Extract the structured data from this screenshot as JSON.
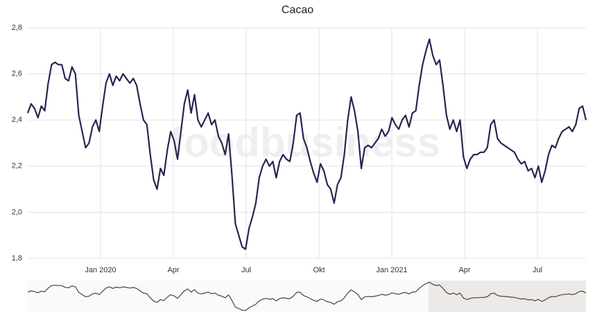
{
  "chart_data": {
    "type": "line",
    "title": "Cacao",
    "watermark": "foodbusiness",
    "xlim": [
      "2019-10",
      "2021-09"
    ],
    "xticks": [
      {
        "value": "2020-01",
        "label": "Jan 2020"
      },
      {
        "value": "2020-04",
        "label": "Apr"
      },
      {
        "value": "2020-07",
        "label": "Jul"
      },
      {
        "value": "2020-10",
        "label": "Okt"
      },
      {
        "value": "2021-01",
        "label": "Jan 2021"
      },
      {
        "value": "2021-04",
        "label": "Apr"
      },
      {
        "value": "2021-07",
        "label": "Jul"
      }
    ],
    "ylim": [
      1.8,
      2.8
    ],
    "yticks": [
      {
        "value": 1.8,
        "label": "1,8"
      },
      {
        "value": 2.0,
        "label": "2,0"
      },
      {
        "value": 2.2,
        "label": "2,2"
      },
      {
        "value": 2.4,
        "label": "2,4"
      },
      {
        "value": 2.6,
        "label": "2,6"
      },
      {
        "value": 2.8,
        "label": "2,8"
      }
    ],
    "grid": true,
    "series": [
      {
        "name": "Cacao",
        "color": "#2e2150",
        "values": [
          2.43,
          2.47,
          2.45,
          2.41,
          2.46,
          2.44,
          2.56,
          2.64,
          2.65,
          2.64,
          2.64,
          2.58,
          2.57,
          2.63,
          2.6,
          2.42,
          2.35,
          2.28,
          2.3,
          2.37,
          2.4,
          2.35,
          2.46,
          2.56,
          2.6,
          2.55,
          2.59,
          2.57,
          2.6,
          2.58,
          2.56,
          2.58,
          2.55,
          2.47,
          2.4,
          2.38,
          2.25,
          2.14,
          2.1,
          2.19,
          2.16,
          2.27,
          2.35,
          2.31,
          2.23,
          2.35,
          2.47,
          2.53,
          2.43,
          2.51,
          2.4,
          2.37,
          2.4,
          2.43,
          2.38,
          2.4,
          2.33,
          2.3,
          2.25,
          2.34,
          2.16,
          1.95,
          1.9,
          1.85,
          1.84,
          1.93,
          1.98,
          2.04,
          2.15,
          2.2,
          2.23,
          2.2,
          2.22,
          2.15,
          2.22,
          2.25,
          2.23,
          2.22,
          2.3,
          2.42,
          2.43,
          2.32,
          2.28,
          2.22,
          2.17,
          2.13,
          2.21,
          2.18,
          2.12,
          2.1,
          2.04,
          2.12,
          2.15,
          2.25,
          2.4,
          2.5,
          2.44,
          2.35,
          2.19,
          2.28,
          2.29,
          2.28,
          2.3,
          2.32,
          2.36,
          2.33,
          2.35,
          2.41,
          2.38,
          2.36,
          2.4,
          2.42,
          2.37,
          2.43,
          2.44,
          2.55,
          2.64,
          2.7,
          2.75,
          2.68,
          2.64,
          2.66,
          2.55,
          2.42,
          2.36,
          2.4,
          2.35,
          2.4,
          2.24,
          2.19,
          2.23,
          2.25,
          2.25,
          2.26,
          2.26,
          2.28,
          2.38,
          2.4,
          2.32,
          2.3,
          2.29,
          2.28,
          2.27,
          2.26,
          2.23,
          2.21,
          2.22,
          2.18,
          2.19,
          2.15,
          2.2,
          2.13,
          2.18,
          2.25,
          2.29,
          2.28,
          2.32,
          2.35,
          2.36,
          2.37,
          2.35,
          2.38,
          2.45,
          2.46,
          2.4
        ]
      }
    ]
  }
}
